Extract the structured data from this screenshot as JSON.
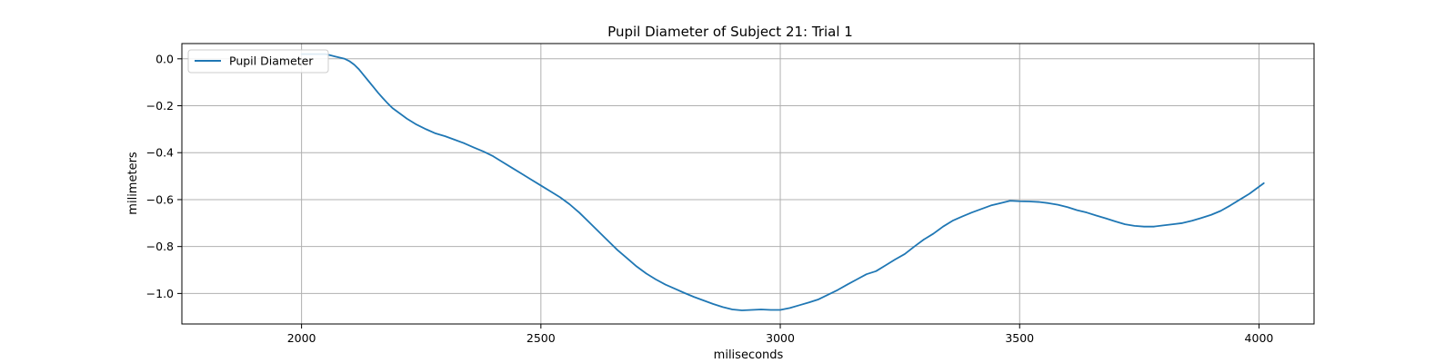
{
  "chart_data": {
    "type": "line",
    "title": "Pupil Diameter of Subject 21: Trial 1",
    "xlabel": "miliseconds",
    "ylabel": "milimeters",
    "xlim": [
      1750,
      4115
    ],
    "ylim": [
      -1.13,
      0.065
    ],
    "xticks": [
      2000,
      2500,
      3000,
      3500,
      4000
    ],
    "xtick_labels": [
      "2000",
      "2500",
      "3000",
      "3500",
      "4000"
    ],
    "yticks": [
      0.0,
      -0.2,
      -0.4,
      -0.6,
      -0.8,
      -1.0
    ],
    "ytick_labels": [
      "0.0",
      "−0.2",
      "−0.4",
      "−0.6",
      "−0.8",
      "−1.0"
    ],
    "grid": true,
    "legend": {
      "position": "top-left",
      "entries": [
        "Pupil Diameter"
      ]
    },
    "series": [
      {
        "name": "Pupil Diameter",
        "color": "#1f77b4",
        "x": [
          2000,
          2010,
          2020,
          2030,
          2040,
          2050,
          2060,
          2070,
          2080,
          2090,
          2100,
          2110,
          2120,
          2130,
          2140,
          2150,
          2160,
          2170,
          2180,
          2190,
          2200,
          2220,
          2240,
          2260,
          2280,
          2300,
          2320,
          2340,
          2360,
          2380,
          2400,
          2420,
          2440,
          2460,
          2480,
          2500,
          2520,
          2540,
          2560,
          2580,
          2600,
          2620,
          2640,
          2660,
          2680,
          2700,
          2720,
          2740,
          2760,
          2780,
          2800,
          2820,
          2840,
          2860,
          2880,
          2900,
          2920,
          2940,
          2960,
          2980,
          3000,
          3020,
          3040,
          3060,
          3080,
          3100,
          3120,
          3140,
          3160,
          3180,
          3200,
          3220,
          3240,
          3260,
          3280,
          3300,
          3320,
          3340,
          3360,
          3380,
          3400,
          3420,
          3440,
          3460,
          3480,
          3500,
          3520,
          3540,
          3560,
          3580,
          3600,
          3620,
          3640,
          3660,
          3680,
          3700,
          3720,
          3740,
          3760,
          3780,
          3800,
          3820,
          3840,
          3860,
          3880,
          3900,
          3920,
          3940,
          3960,
          3980,
          4000,
          4010
        ],
        "values": [
          0.02,
          0.02,
          0.02,
          0.02,
          0.02,
          0.02,
          0.015,
          0.01,
          0.005,
          0.0,
          -0.01,
          -0.025,
          -0.045,
          -0.07,
          -0.095,
          -0.12,
          -0.145,
          -0.168,
          -0.19,
          -0.21,
          -0.225,
          -0.255,
          -0.28,
          -0.3,
          -0.318,
          -0.33,
          -0.345,
          -0.36,
          -0.378,
          -0.395,
          -0.415,
          -0.44,
          -0.465,
          -0.49,
          -0.515,
          -0.54,
          -0.565,
          -0.59,
          -0.62,
          -0.655,
          -0.695,
          -0.735,
          -0.775,
          -0.815,
          -0.85,
          -0.885,
          -0.915,
          -0.94,
          -0.962,
          -0.98,
          -0.998,
          -1.015,
          -1.03,
          -1.045,
          -1.058,
          -1.068,
          -1.072,
          -1.07,
          -1.068,
          -1.07,
          -1.07,
          -1.062,
          -1.05,
          -1.038,
          -1.025,
          -1.005,
          -0.985,
          -0.962,
          -0.94,
          -0.918,
          -0.905,
          -0.88,
          -0.855,
          -0.832,
          -0.8,
          -0.77,
          -0.745,
          -0.715,
          -0.69,
          -0.672,
          -0.655,
          -0.64,
          -0.625,
          -0.615,
          -0.605,
          -0.607,
          -0.608,
          -0.61,
          -0.615,
          -0.622,
          -0.632,
          -0.645,
          -0.655,
          -0.668,
          -0.68,
          -0.693,
          -0.705,
          -0.712,
          -0.715,
          -0.715,
          -0.71,
          -0.705,
          -0.7,
          -0.69,
          -0.678,
          -0.665,
          -0.648,
          -0.625,
          -0.6,
          -0.575,
          -0.545,
          -0.53
        ]
      }
    ]
  }
}
